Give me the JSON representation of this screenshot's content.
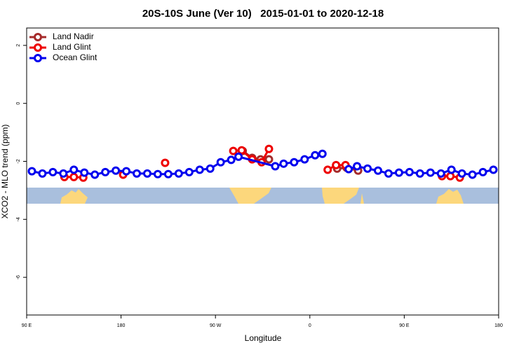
{
  "chart_data": {
    "type": "line",
    "title": "20S-10S June (Ver 10)   2015-01-01 to 2020-12-18",
    "x_label": "Longitude",
    "y_label": "XCO2 - MLO trend (ppm)",
    "xlim": [
      90,
      540
    ],
    "ylim": [
      -7.3,
      2.6
    ],
    "xticks": [
      {
        "value": 90,
        "label": "90 E"
      },
      180,
      {
        "value": 270,
        "label": "90 W"
      },
      {
        "value": 360,
        "label": "0"
      },
      {
        "value": 450,
        "label": "90 E"
      },
      {
        "value": 540,
        "label": "180"
      }
    ],
    "yticks": [
      2,
      0,
      -2,
      -4,
      -6
    ],
    "legend": "top-left",
    "series": [
      {
        "name": "Land Nadir",
        "color": "#a52a2a",
        "x": [
          296,
          305,
          313,
          321,
          null,
          386,
          395,
          406
        ],
        "values": [
          -1.64,
          -1.88,
          -1.93,
          -1.93,
          null,
          -2.25,
          -2.22,
          -2.32
        ]
      },
      {
        "name": "Land Glint",
        "color": "#ee0000",
        "x": [
          126,
          135,
          144,
          null,
          182,
          null,
          222,
          null,
          287,
          295,
          305,
          314,
          321,
          null,
          377,
          385,
          394,
          null,
          486,
          494,
          503
        ],
        "values": [
          -2.54,
          -2.54,
          -2.56,
          null,
          -2.46,
          null,
          -2.05,
          null,
          -1.64,
          -1.62,
          -1.93,
          -2.03,
          -1.57,
          null,
          -2.29,
          -2.13,
          -2.13,
          null,
          -2.51,
          -2.51,
          -2.56
        ]
      },
      {
        "name": "Ocean Glint",
        "color": "#0000ee",
        "x": [
          95,
          105,
          115,
          125,
          135,
          145,
          155,
          165,
          175,
          185,
          195,
          205,
          215,
          225,
          235,
          245,
          255,
          265,
          275,
          285,
          292,
          327,
          335,
          345,
          355,
          365,
          372,
          null,
          397,
          405,
          415,
          425,
          435,
          445,
          455,
          465,
          475,
          485,
          495,
          505,
          515,
          525,
          535
        ],
        "values": [
          -2.34,
          -2.42,
          -2.37,
          -2.42,
          -2.29,
          -2.39,
          -2.46,
          -2.37,
          -2.32,
          -2.34,
          -2.42,
          -2.42,
          -2.44,
          -2.44,
          -2.42,
          -2.37,
          -2.29,
          -2.25,
          -2.03,
          -1.95,
          -1.84,
          -2.17,
          -2.08,
          -2.03,
          -1.93,
          -1.79,
          -1.74,
          null,
          -2.27,
          -2.17,
          -2.25,
          -2.32,
          -2.42,
          -2.39,
          -2.37,
          -2.42,
          -2.39,
          -2.42,
          -2.29,
          -2.42,
          -2.46,
          -2.37,
          -2.29
        ]
      }
    ]
  }
}
